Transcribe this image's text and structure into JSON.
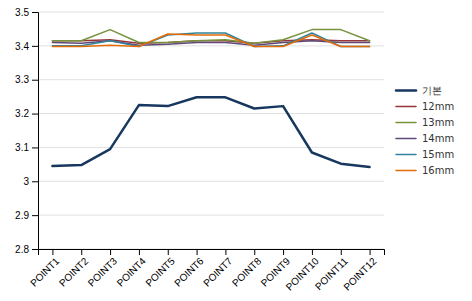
{
  "chart_data": {
    "type": "line",
    "categories": [
      "POINT1",
      "POINT2",
      "POINT3",
      "POINT4",
      "POINT5",
      "POINT6",
      "POINT7",
      "POINT8",
      "POINT9",
      "POINT10",
      "POINT11",
      "POINT12"
    ],
    "series": [
      {
        "name": "기본",
        "color": "#17375E",
        "values": [
          3.045,
          3.048,
          3.095,
          3.225,
          3.222,
          3.248,
          3.248,
          3.215,
          3.222,
          3.085,
          3.052,
          3.042
        ]
      },
      {
        "name": "12mm",
        "color": "#953735",
        "values": [
          3.415,
          3.415,
          3.418,
          3.408,
          3.41,
          3.415,
          3.415,
          3.408,
          3.415,
          3.418,
          3.415,
          3.415
        ]
      },
      {
        "name": "13mm",
        "color": "#76923C",
        "values": [
          3.415,
          3.415,
          3.448,
          3.41,
          3.41,
          3.415,
          3.418,
          3.408,
          3.418,
          3.448,
          3.448,
          3.415
        ]
      },
      {
        "name": "14mm",
        "color": "#5F497A",
        "values": [
          3.41,
          3.408,
          3.415,
          3.402,
          3.405,
          3.41,
          3.41,
          3.402,
          3.41,
          3.415,
          3.41,
          3.41
        ]
      },
      {
        "name": "15mm",
        "color": "#31849B",
        "values": [
          3.4,
          3.4,
          3.415,
          3.398,
          3.432,
          3.438,
          3.438,
          3.398,
          3.4,
          3.438,
          3.398,
          3.398
        ]
      },
      {
        "name": "16mm",
        "color": "#E36C09",
        "values": [
          3.398,
          3.398,
          3.402,
          3.398,
          3.435,
          3.432,
          3.432,
          3.398,
          3.398,
          3.432,
          3.398,
          3.398
        ]
      }
    ],
    "ylim": [
      2.8,
      3.5
    ],
    "yticks": [
      2.8,
      2.9,
      3,
      3.1,
      3.2,
      3.3,
      3.4,
      3.5
    ],
    "grid": true,
    "legend": "right"
  }
}
